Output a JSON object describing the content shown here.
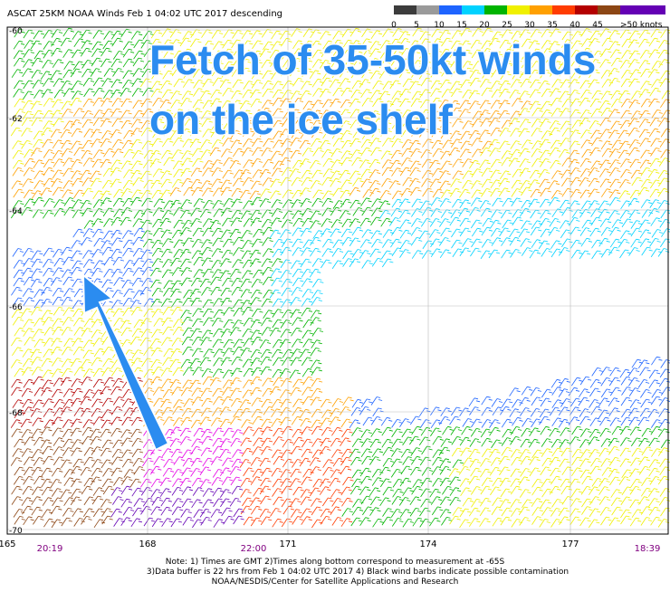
{
  "title": "ASCAT 25KM NOAA Winds  Feb  1 04:02 UTC 2017 descending",
  "colorbar": {
    "labels": [
      "0",
      "5",
      "10",
      "15",
      "20",
      "25",
      "30",
      "35",
      "40",
      "45",
      ">50 knots"
    ],
    "colors": [
      "#3c3c3c",
      "#9a9a9a",
      "#1e64ff",
      "#00d2ff",
      "#00b400",
      "#f0f000",
      "#ffa000",
      "#ff3c00",
      "#b40000",
      "#8c4614",
      "#e600e6",
      "#6400b4"
    ]
  },
  "lat_labels": [
    "-60",
    "-62",
    "-64",
    "-66",
    "-68",
    "-70"
  ],
  "lon_labels": [
    "165",
    "168",
    "171",
    "174",
    "177"
  ],
  "time_labels": [
    "20:19",
    "22:00",
    "18:39"
  ],
  "annotation": [
    "Fetch of 35-50kt winds",
    "on the ice shelf"
  ],
  "notes": [
    "Note: 1) Times are GMT 2)Times along bottom correspond to measurement at -65S",
    "3)Data buffer is 22 hrs from Feb  1 04:02 UTC 2017 4) Black wind barbs indicate possible contamination",
    "NOAA/NESDIS/Center for Satellite Applications and Research"
  ]
}
